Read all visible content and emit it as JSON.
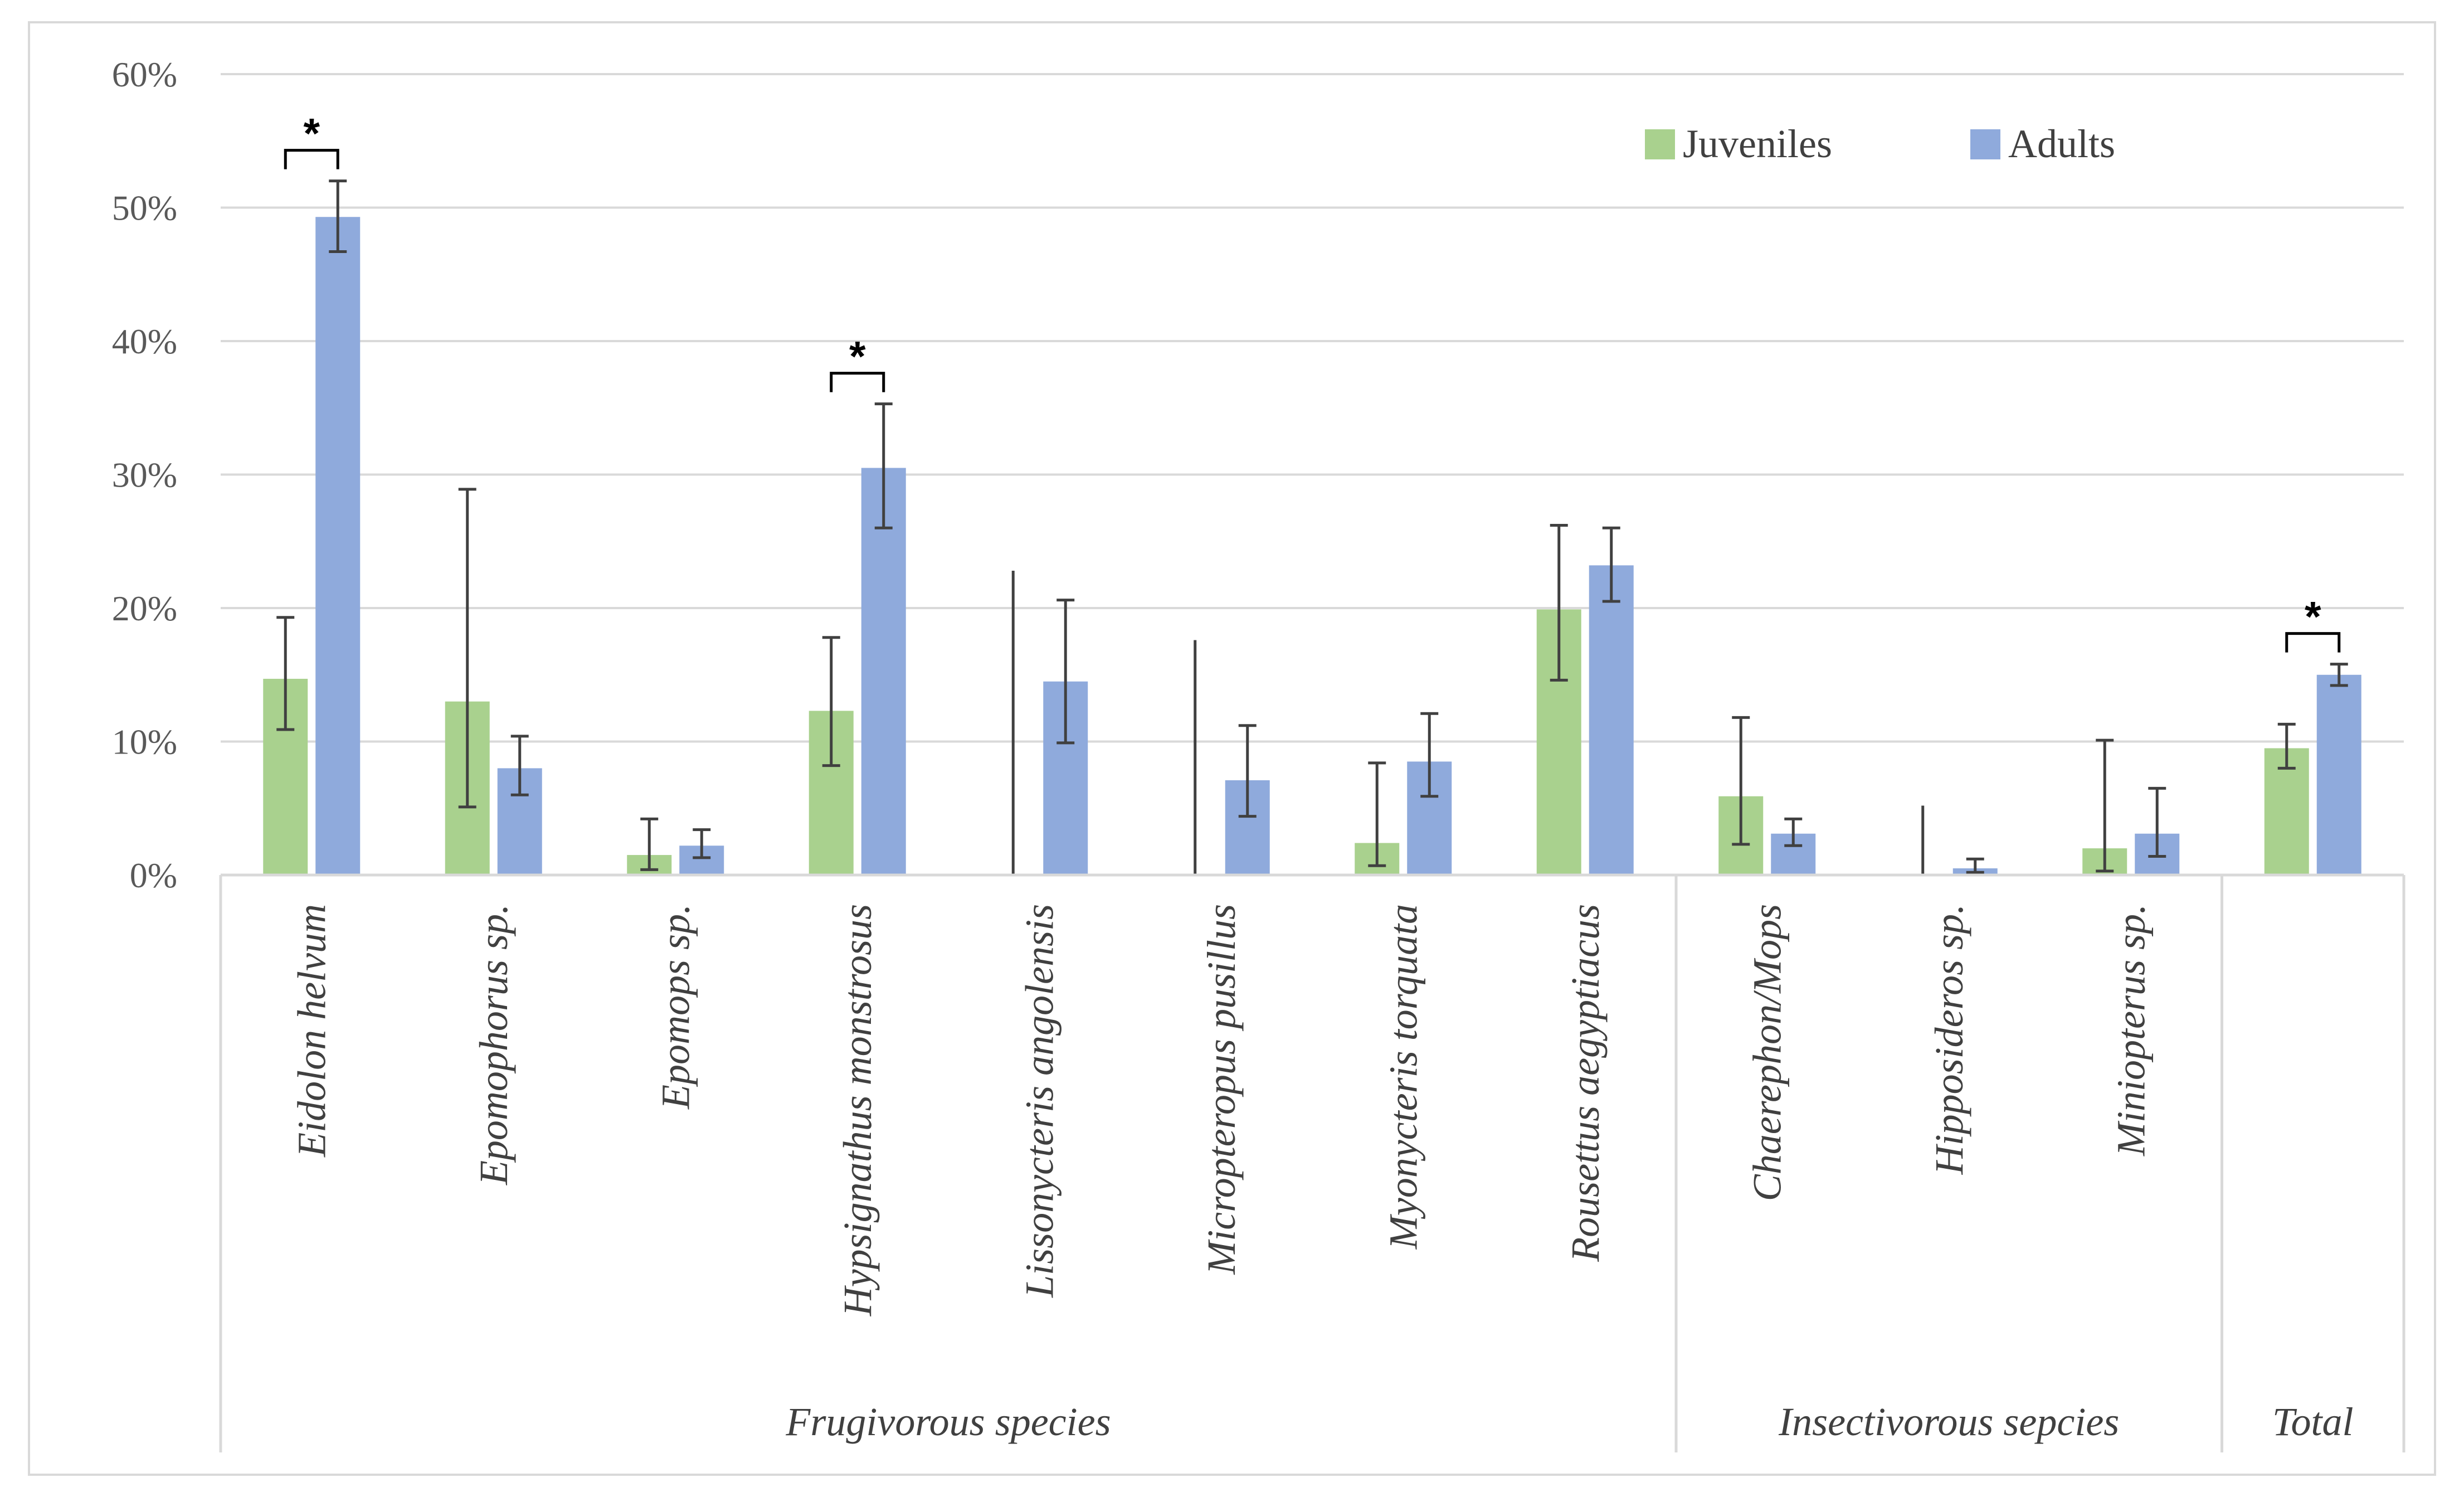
{
  "chart_data": {
    "type": "bar",
    "title": "",
    "xlabel": "",
    "ylabel": "",
    "ylim": [
      0,
      60
    ],
    "yticks": [
      "0%",
      "10%",
      "20%",
      "30%",
      "40%",
      "50%",
      "60%"
    ],
    "grid": true,
    "legend_position": "top-right",
    "categories": [
      "Eidolon helvum",
      "Epomophorus sp.",
      "Epomops sp.",
      "Hypsignathus monstrosus",
      "Lissonycteris angolensis",
      "Micropteropus pusillus",
      "Myonycteris torquata",
      "Rousettus aegyptiacus",
      "Chaerephon/Mops",
      "Hipposideros sp.",
      "Miniopterus sp.",
      ""
    ],
    "groups": [
      {
        "label": "Frugivorous species",
        "start": 0,
        "end": 7
      },
      {
        "label": "Insectivorous sepcies",
        "start": 8,
        "end": 10
      },
      {
        "label": "Total",
        "start": 11,
        "end": 11
      }
    ],
    "series": [
      {
        "name": "Juveniles",
        "color": "#a9d18e",
        "values": [
          14.7,
          13.0,
          1.5,
          12.3,
          0,
          0,
          2.4,
          19.9,
          5.9,
          0,
          2.0,
          9.5
        ],
        "err_low": [
          10.9,
          5.1,
          0.4,
          8.2,
          0,
          0,
          0.7,
          14.6,
          2.3,
          0,
          0.3,
          8.0
        ],
        "err_high": [
          19.3,
          28.9,
          4.2,
          17.8,
          22.8,
          17.6,
          8.4,
          26.2,
          11.8,
          5.2,
          10.1,
          11.3
        ]
      },
      {
        "name": "Adults",
        "color": "#8faadc",
        "values": [
          49.3,
          8.0,
          2.2,
          30.5,
          14.5,
          7.1,
          8.5,
          23.2,
          3.1,
          0.5,
          3.1,
          15.0
        ],
        "err_low": [
          46.7,
          6.0,
          1.3,
          26.0,
          9.9,
          4.4,
          5.9,
          20.5,
          2.2,
          0.2,
          1.4,
          14.2
        ],
        "err_high": [
          52.0,
          10.4,
          3.4,
          35.3,
          20.6,
          11.2,
          12.1,
          26.0,
          4.2,
          1.2,
          6.5,
          15.8
        ]
      }
    ],
    "significance": [
      {
        "category_index": 0,
        "label": "*"
      },
      {
        "category_index": 3,
        "label": "*"
      },
      {
        "category_index": 11,
        "label": "*"
      }
    ]
  }
}
